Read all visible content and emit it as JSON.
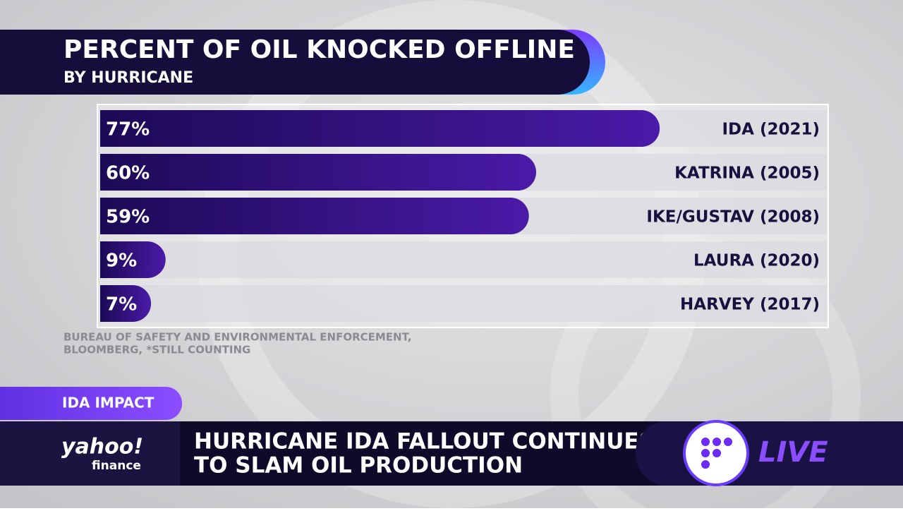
{
  "chart_data": {
    "type": "bar",
    "orientation": "horizontal",
    "title": "PERCENT OF OIL KNOCKED OFFLINE",
    "subtitle": "BY HURRICANE",
    "categories": [
      "IDA (2021)",
      "KATRINA (2005)",
      "IKE/GUSTAV (2008)",
      "LAURA (2020)",
      "HARVEY (2017)"
    ],
    "values": [
      77,
      60,
      59,
      9,
      7
    ],
    "value_labels": [
      "77%",
      "60%",
      "59%",
      "9%",
      "7%"
    ],
    "xlim": [
      0,
      100
    ],
    "color": "#2b0c72"
  },
  "source": [
    "BUREAU OF SAFETY AND ENVIRONMENTAL ENFORCEMENT,",
    "BLOOMBERG, *STILL COUNTING"
  ],
  "lower_third": {
    "tag": "IDA IMPACT",
    "headline": [
      "HURRICANE IDA FALLOUT CONTINUES",
      "TO SLAM OIL PRODUCTION"
    ],
    "logo": "yahoo!",
    "logo_sub": "finance",
    "live": "LIVE"
  }
}
